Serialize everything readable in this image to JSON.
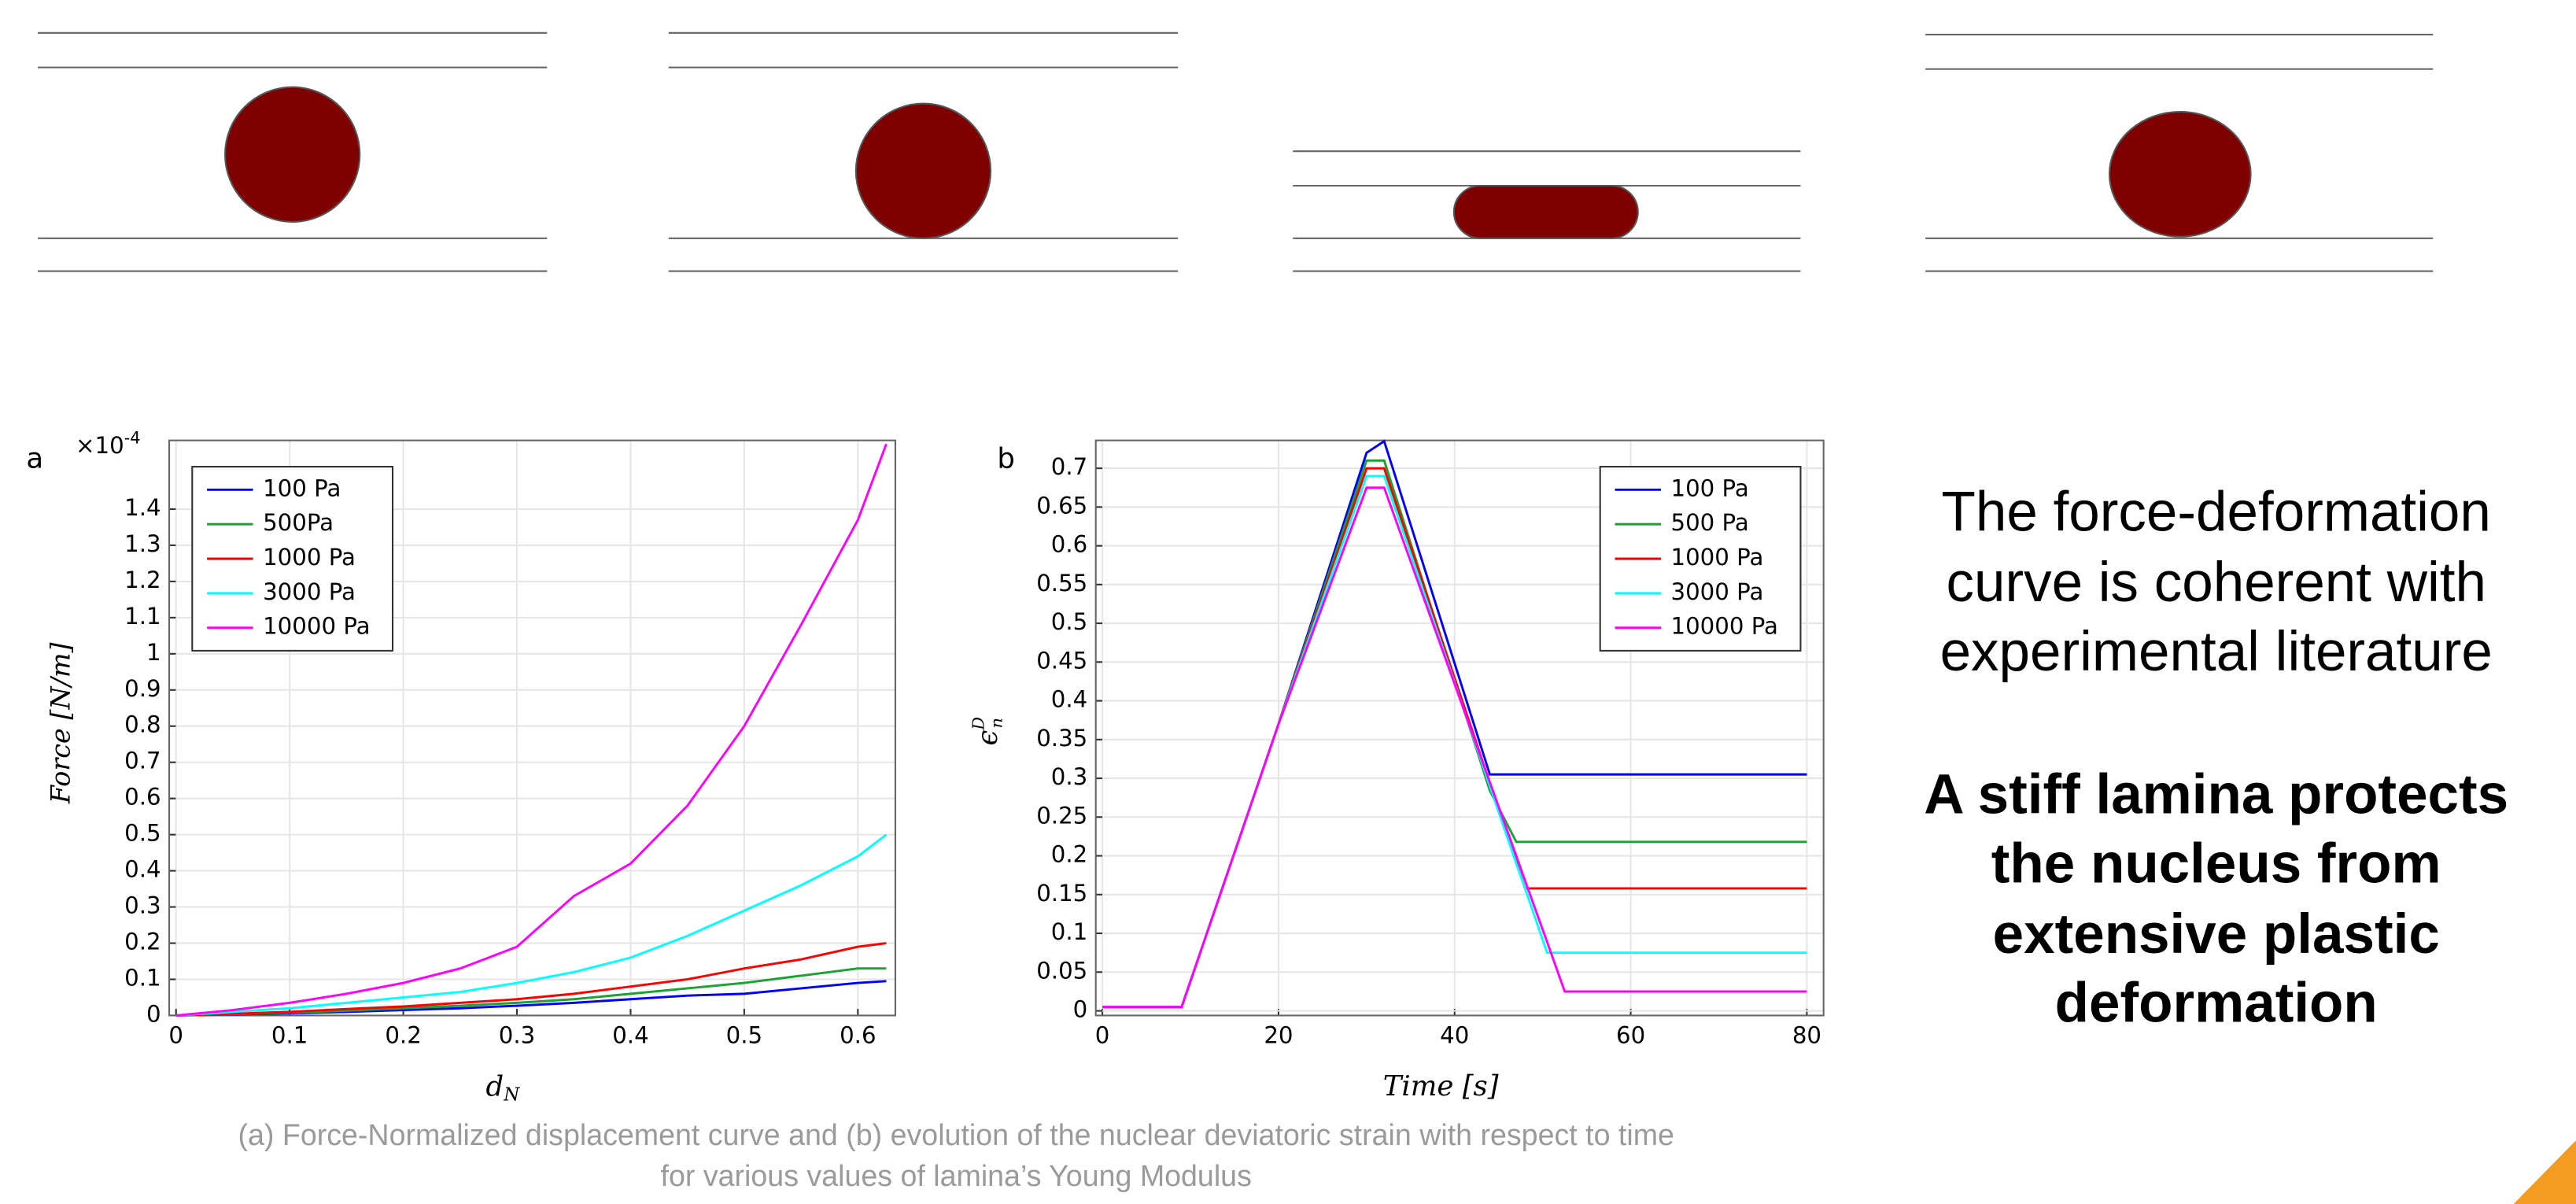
{
  "chart_data": [
    {
      "type": "line",
      "panel_label": "a",
      "y_multiplier": "×10",
      "y_multiplier_exp": "-4",
      "y_label": "Force [N/m]",
      "x_label": "d",
      "x_label_sub": "N",
      "x": [
        0,
        0.05,
        0.1,
        0.15,
        0.2,
        0.25,
        0.3,
        0.35,
        0.4,
        0.45,
        0.5,
        0.55,
        0.6,
        0.625
      ],
      "series": [
        {
          "name": "100 Pa",
          "color": "#0000ff",
          "values": [
            0,
            0.003,
            0.006,
            0.01,
            0.015,
            0.02,
            0.027,
            0.035,
            0.045,
            0.055,
            0.06,
            0.075,
            0.09,
            0.095
          ]
        },
        {
          "name": "500Pa",
          "color": "#1aa332",
          "values": [
            0,
            0.004,
            0.008,
            0.013,
            0.02,
            0.027,
            0.035,
            0.045,
            0.06,
            0.075,
            0.09,
            0.11,
            0.13,
            0.13
          ]
        },
        {
          "name": "1000 Pa",
          "color": "#ff0000",
          "values": [
            0,
            0.005,
            0.01,
            0.018,
            0.025,
            0.035,
            0.045,
            0.06,
            0.08,
            0.1,
            0.13,
            0.155,
            0.19,
            0.2
          ]
        },
        {
          "name": "3000 Pa",
          "color": "#00ffff",
          "values": [
            0,
            0.01,
            0.02,
            0.035,
            0.05,
            0.065,
            0.09,
            0.12,
            0.16,
            0.22,
            0.29,
            0.36,
            0.44,
            0.5
          ]
        },
        {
          "name": "10000 Pa",
          "color": "#ff00ff",
          "values": [
            0,
            0.015,
            0.035,
            0.06,
            0.09,
            0.13,
            0.19,
            0.33,
            0.42,
            0.58,
            0.8,
            1.08,
            1.37,
            1.58
          ]
        }
      ],
      "xlim": [
        -0.006,
        0.633
      ],
      "ylim": [
        0,
        1.59
      ],
      "xticks": [
        0,
        0.1,
        0.2,
        0.3,
        0.4,
        0.5,
        0.6
      ],
      "yticks": [
        0,
        0.1,
        0.2,
        0.3,
        0.4,
        0.5,
        0.6,
        0.7,
        0.8,
        0.9,
        1,
        1.1,
        1.2,
        1.3,
        1.4
      ],
      "grid": true,
      "legend": "upper left"
    },
    {
      "type": "line",
      "panel_label": "b",
      "y_label": "ϵ",
      "y_label_sup": "D",
      "y_label_sub": "n",
      "x_label": "Time [s]",
      "x": [
        0,
        9,
        20,
        30,
        32,
        44,
        47,
        48,
        50.5,
        52.5,
        80
      ],
      "series": [
        {
          "name": "100 Pa",
          "color": "#0000ff",
          "values": [
            0.005,
            0.005,
            0.37,
            0.72,
            0.735,
            0.305,
            0.305,
            0.305,
            0.305,
            0.305,
            0.305
          ]
        },
        {
          "name": "500 Pa",
          "color": "#1aa332",
          "values": [
            0.005,
            0.005,
            0.37,
            0.71,
            0.71,
            0.284,
            0.218,
            0.218,
            0.218,
            0.218,
            0.218
          ]
        },
        {
          "name": "1000 Pa",
          "color": "#ff0000",
          "values": [
            0.005,
            0.005,
            0.37,
            0.7,
            0.7,
            0.294,
            0.192,
            0.158,
            0.158,
            0.158,
            0.158
          ]
        },
        {
          "name": "3000 Pa",
          "color": "#00ffff",
          "values": [
            0.005,
            0.005,
            0.37,
            0.69,
            0.69,
            0.29,
            0.19,
            0.158,
            0.075,
            0.075,
            0.075
          ]
        },
        {
          "name": "10000 Pa",
          "color": "#ff00ff",
          "values": [
            0.005,
            0.005,
            0.37,
            0.675,
            0.675,
            0.295,
            0.2,
            0.168,
            0.089,
            0.025,
            0.025
          ]
        }
      ],
      "xlim": [
        -0.75,
        81.9
      ],
      "ylim": [
        -0.006,
        0.736
      ],
      "xticks": [
        0,
        20,
        40,
        60,
        80
      ],
      "yticks": [
        0,
        0.05,
        0.1,
        0.15,
        0.2,
        0.25,
        0.3,
        0.35,
        0.4,
        0.45,
        0.5,
        0.55,
        0.6,
        0.65,
        0.7
      ],
      "grid": true,
      "legend": "upper right"
    }
  ],
  "slide": {
    "statement": [
      "The force-deformation",
      "curve is coherent with",
      "experimental literature"
    ],
    "conclusion": [
      "A stiff lamina protects",
      "the nucleus from",
      "extensive plastic",
      "deformation"
    ],
    "caption": [
      "(a) Force-Normalized displacement curve and (b) evolution of the nuclear deviatoric strain with respect to time",
      "for various values of lamina’s Young Modulus"
    ]
  }
}
